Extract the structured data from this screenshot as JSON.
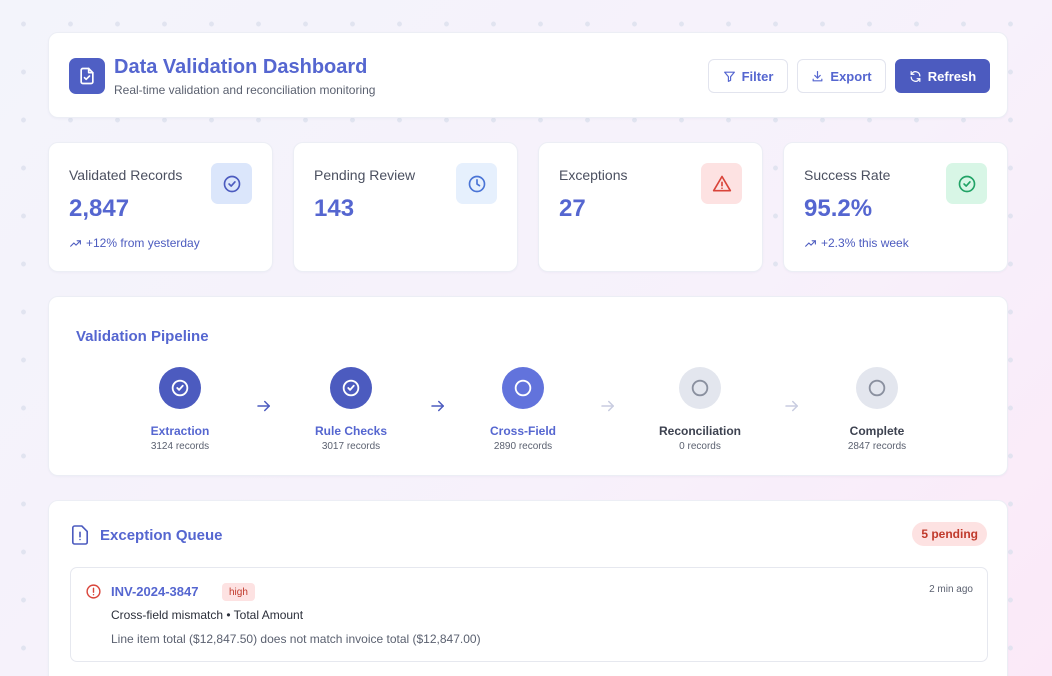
{
  "header": {
    "title": "Data Validation Dashboard",
    "subtitle": "Real-time validation and reconciliation monitoring",
    "filter_label": "Filter",
    "export_label": "Export",
    "refresh_label": "Refresh"
  },
  "stats": [
    {
      "label": "Validated Records",
      "value": "2,847",
      "trend": "+12% from yesterday",
      "icon": "check-circle-icon",
      "icon_bg": "#dbe6fb",
      "icon_color": "#4c5bbf"
    },
    {
      "label": "Pending Review",
      "value": "143",
      "trend": "",
      "icon": "clock-icon",
      "icon_bg": "#e6f0fd",
      "icon_color": "#4a74d6"
    },
    {
      "label": "Exceptions",
      "value": "27",
      "trend": "",
      "icon": "warning-triangle-icon",
      "icon_bg": "#fde2e2",
      "icon_color": "#d9443a"
    },
    {
      "label": "Success Rate",
      "value": "95.2%",
      "trend": "+2.3% this week",
      "icon": "check-circle-icon",
      "icon_bg": "#d8f6e6",
      "icon_color": "#21a366"
    }
  ],
  "pipeline": {
    "title": "Validation Pipeline",
    "steps": [
      {
        "name": "Extraction",
        "count": "3124 records",
        "status": "complete"
      },
      {
        "name": "Rule Checks",
        "count": "3017 records",
        "status": "complete"
      },
      {
        "name": "Cross-Field",
        "count": "2890 records",
        "status": "active"
      },
      {
        "name": "Reconciliation",
        "count": "0 records",
        "status": "pending"
      },
      {
        "name": "Complete",
        "count": "2847 records",
        "status": "pending"
      }
    ]
  },
  "exceptions": {
    "title": "Exception Queue",
    "pending_badge": "5 pending",
    "items": [
      {
        "id": "INV-2024-3847",
        "severity": "high",
        "time": "2 min ago",
        "type": "Cross-field mismatch • Total Amount",
        "description": "Line item total ($12,847.50) does not match invoice total ($12,847.00)"
      }
    ]
  },
  "colors": {
    "accent": "#5566d0",
    "primary": "#4c5bbf",
    "danger": "#d9443a",
    "success": "#21a366"
  }
}
